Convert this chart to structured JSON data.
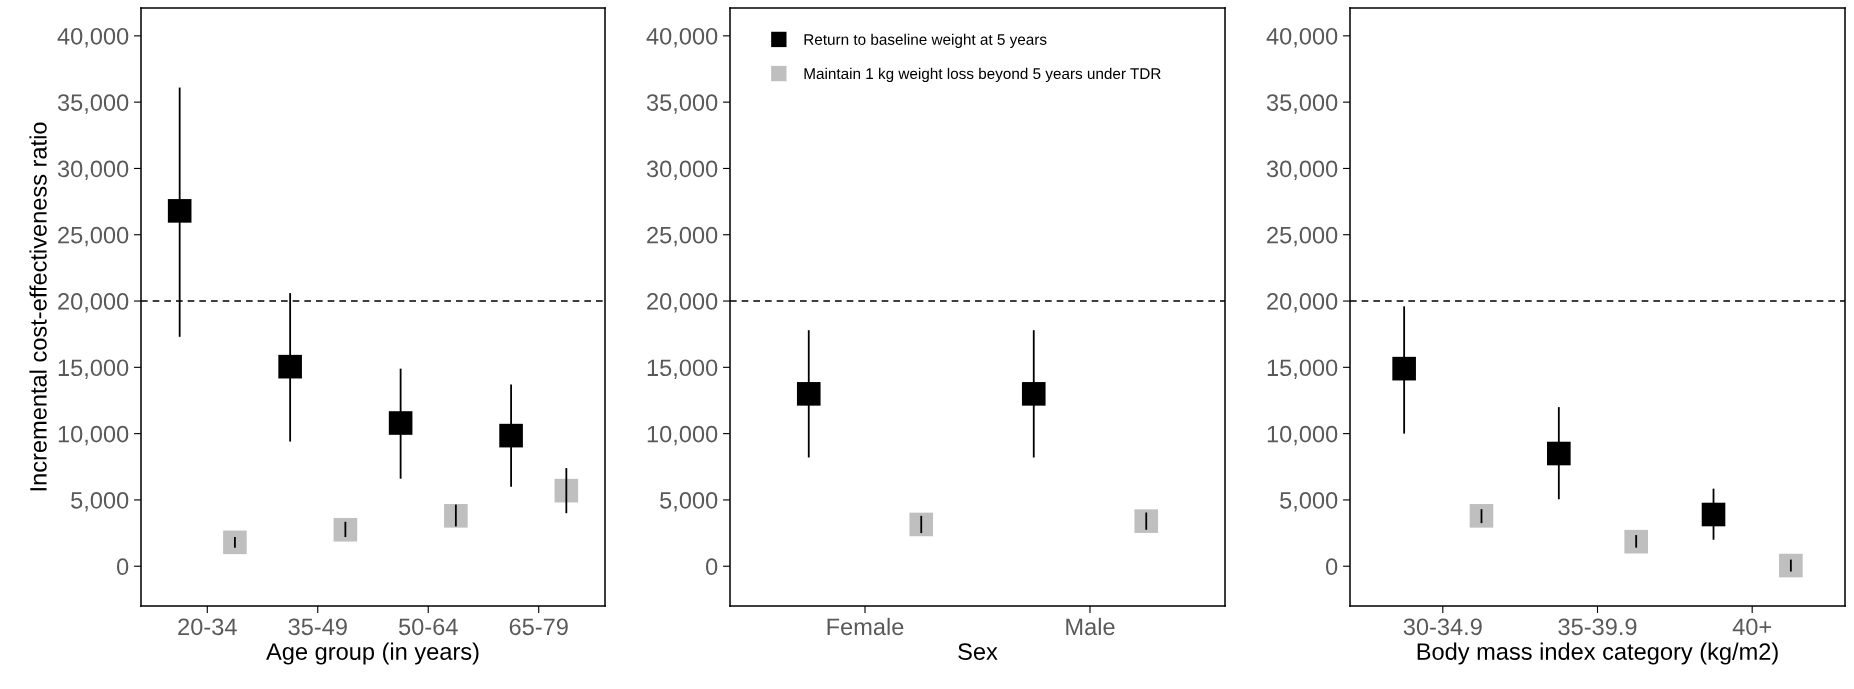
{
  "chart_data": [
    {
      "type": "scatter",
      "ylabel": "Incremental cost-effectiveness ratio",
      "xlabel": "Age group (in years)",
      "categories": [
        "20-34",
        "35-49",
        "50-64",
        "65-79"
      ],
      "ylim": [
        -3000,
        42100
      ],
      "yticks": [
        {
          "value": 0,
          "label": "0"
        },
        {
          "value": 5000,
          "label": "5,000"
        },
        {
          "value": 10000,
          "label": "10,000"
        },
        {
          "value": 15000,
          "label": "15,000"
        },
        {
          "value": 20000,
          "label": "20,000"
        },
        {
          "value": 25000,
          "label": "25,000"
        },
        {
          "value": 30000,
          "label": "30,000"
        },
        {
          "value": 35000,
          "label": "35,000"
        },
        {
          "value": 40000,
          "label": "40,000"
        }
      ],
      "marker": "square",
      "grid": false,
      "legend": false,
      "ref_lines": [
        {
          "axis": "y",
          "value": 20000,
          "line_style": "dashed",
          "color": "#000000"
        }
      ],
      "series": [
        {
          "color": "#000000",
          "values": [
            26800,
            15050,
            10800,
            9850
          ],
          "errors": [
            [
              17300,
              36100
            ],
            [
              9400,
              20600
            ],
            [
              6600,
              14900
            ],
            [
              6000,
              13700
            ]
          ]
        },
        {
          "color": "#bfbfbf",
          "values": [
            1800,
            2750,
            3800,
            5700
          ],
          "errors": [
            [
              1400,
              2200
            ],
            [
              2200,
              3350
            ],
            [
              3000,
              4650
            ],
            [
              4000,
              7400
            ]
          ]
        }
      ]
    },
    {
      "type": "scatter",
      "xlabel": "Sex",
      "categories": [
        "Female",
        "Male"
      ],
      "ylim": [
        -3000,
        42100
      ],
      "yticks": [
        {
          "value": 0,
          "label": "0"
        },
        {
          "value": 5000,
          "label": "5,000"
        },
        {
          "value": 10000,
          "label": "10,000"
        },
        {
          "value": 15000,
          "label": "15,000"
        },
        {
          "value": 20000,
          "label": "20,000"
        },
        {
          "value": 25000,
          "label": "25,000"
        },
        {
          "value": 30000,
          "label": "30,000"
        },
        {
          "value": 35000,
          "label": "35,000"
        },
        {
          "value": 40000,
          "label": "40,000"
        }
      ],
      "marker": "square",
      "grid": false,
      "legend": "top left",
      "ref_lines": [
        {
          "axis": "y",
          "value": 20000,
          "line_style": "dashed",
          "color": "#000000"
        }
      ],
      "series": [
        {
          "name": "Return to baseline weight at 5 years",
          "color": "#000000",
          "values": [
            13000,
            13000
          ],
          "errors": [
            [
              8200,
              17800
            ],
            [
              8200,
              17800
            ]
          ]
        },
        {
          "name": "Maintain 1 kg weight loss beyond 5 years under TDR",
          "color": "#bfbfbf",
          "values": [
            3150,
            3400
          ],
          "errors": [
            [
              2500,
              3800
            ],
            [
              2750,
              4050
            ]
          ]
        }
      ]
    },
    {
      "type": "scatter",
      "xlabel": "Body mass index category (kg/m2)",
      "categories": [
        "30-34.9",
        "35-39.9",
        "40+"
      ],
      "ylim": [
        -3000,
        42100
      ],
      "yticks": [
        {
          "value": 0,
          "label": "0"
        },
        {
          "value": 5000,
          "label": "5,000"
        },
        {
          "value": 10000,
          "label": "10,000"
        },
        {
          "value": 15000,
          "label": "15,000"
        },
        {
          "value": 20000,
          "label": "20,000"
        },
        {
          "value": 25000,
          "label": "25,000"
        },
        {
          "value": 30000,
          "label": "30,000"
        },
        {
          "value": 35000,
          "label": "35,000"
        },
        {
          "value": 40000,
          "label": "40,000"
        }
      ],
      "marker": "square",
      "grid": false,
      "legend": false,
      "ref_lines": [
        {
          "axis": "y",
          "value": 20000,
          "line_style": "dashed",
          "color": "#000000"
        }
      ],
      "series": [
        {
          "color": "#000000",
          "values": [
            14900,
            8500,
            3900
          ],
          "errors": [
            [
              10000,
              19600
            ],
            [
              5050,
              12000
            ],
            [
              2000,
              5850
            ]
          ]
        },
        {
          "color": "#bfbfbf",
          "values": [
            3800,
            1850,
            50
          ],
          "errors": [
            [
              3250,
              4300
            ],
            [
              1400,
              2350
            ],
            [
              -400,
              500
            ]
          ]
        }
      ]
    }
  ]
}
